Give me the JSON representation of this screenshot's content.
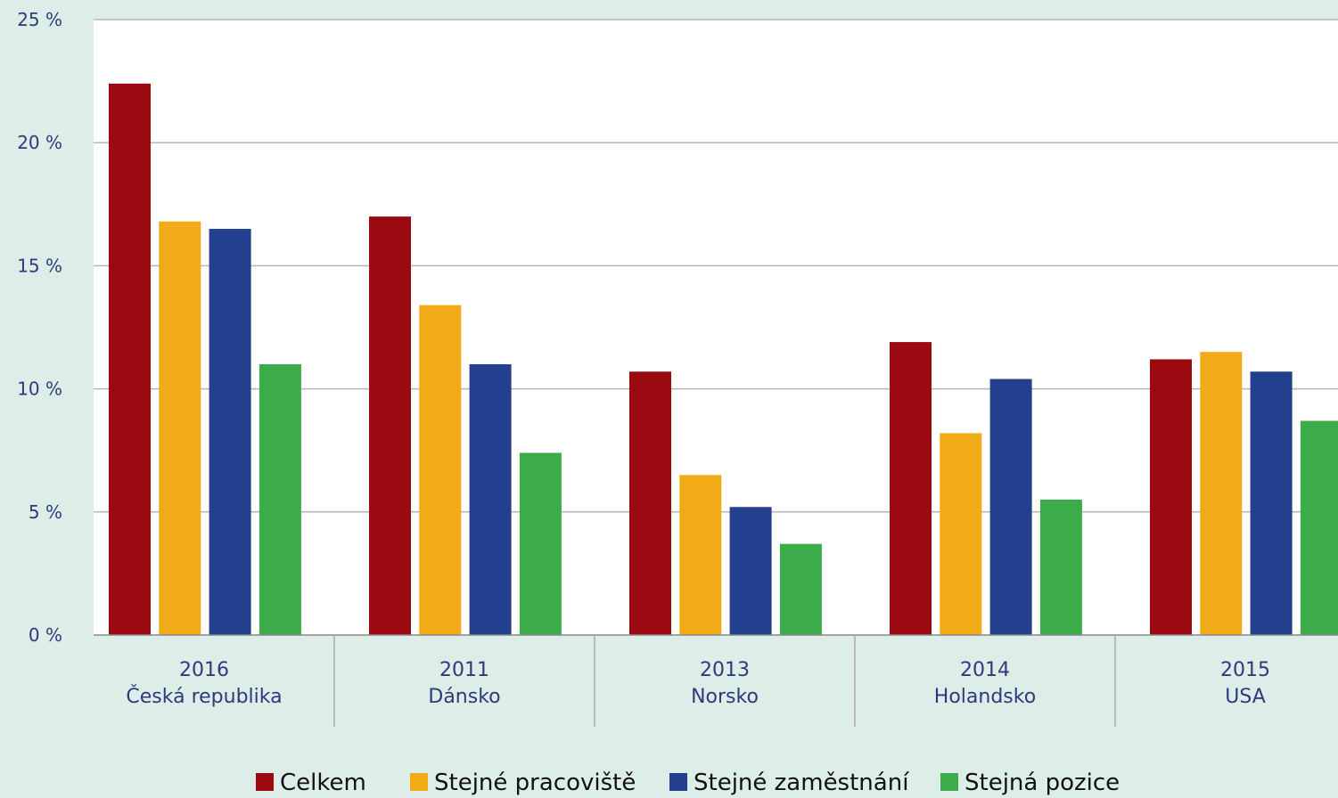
{
  "chart_data": {
    "type": "bar",
    "groups": [
      {
        "year": "2016",
        "country": "Česká republika"
      },
      {
        "year": "2011",
        "country": "Dánsko"
      },
      {
        "year": "2013",
        "country": "Norsko"
      },
      {
        "year": "2014",
        "country": "Holandsko"
      },
      {
        "year": "2015",
        "country": "USA"
      }
    ],
    "series": [
      {
        "name": "Celkem",
        "color": "#9b0a10",
        "values": [
          22.4,
          17.0,
          10.7,
          11.9,
          11.2
        ]
      },
      {
        "name": "Stejné pracoviště",
        "color": "#f0ab16",
        "values": [
          16.8,
          13.4,
          6.5,
          8.2,
          11.5
        ]
      },
      {
        "name": "Stejné zaměstnání",
        "color": "#23408e",
        "values": [
          16.5,
          11.0,
          5.2,
          10.4,
          10.7
        ]
      },
      {
        "name": "Stejná pozice",
        "color": "#3cab4a",
        "values": [
          11.0,
          7.4,
          3.7,
          5.5,
          8.7
        ]
      }
    ],
    "yticks": [
      "0 %",
      "5 %",
      "10 %",
      "15 %",
      "20 %",
      "25 %"
    ],
    "ylim": [
      0,
      25
    ],
    "grid": true,
    "legend_position": "bottom"
  }
}
